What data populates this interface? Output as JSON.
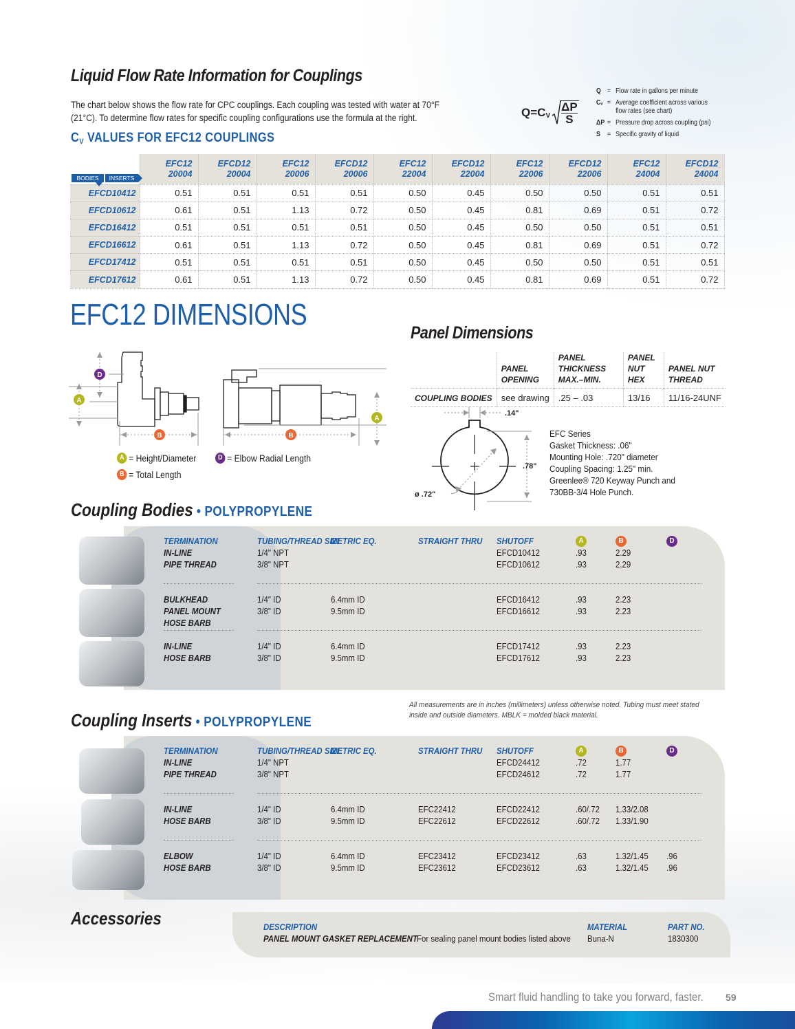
{
  "flow": {
    "title": "Liquid Flow Rate Information for Couplings",
    "intro_line1": "The chart below shows the flow rate for CPC couplings. Each coupling was tested with water at 70°F",
    "intro_line2": "(21°C). To determine flow rates for specific coupling configurations use the formula at the right.",
    "cv_title_c": "C",
    "cv_title_sub": "V",
    "cv_title_rest": " VALUES FOR EFC12 COUPLINGS"
  },
  "formula": {
    "lhs": "Q=C",
    "lhs_sub": "V",
    "numerator": "ΔP",
    "denominator": "S",
    "legend": [
      {
        "symbol": "Q",
        "eq": "=",
        "desc": "Flow rate in gallons per minute"
      },
      {
        "symbol": "Cᵥ",
        "eq": "=",
        "desc": "Average coefficient across various flow rates (see chart)"
      },
      {
        "symbol": "ΔP",
        "eq": "=",
        "desc": "Pressure drop across coupling (psi)"
      },
      {
        "symbol": "S",
        "eq": "=",
        "desc": "Specific gravity of liquid"
      }
    ]
  },
  "cv_table": {
    "tag_bodies": "BODIES",
    "tag_inserts": "INSERTS",
    "columns": [
      {
        "l1": "EFC12",
        "l2": "20004"
      },
      {
        "l1": "EFCD12",
        "l2": "20004"
      },
      {
        "l1": "EFC12",
        "l2": "20006"
      },
      {
        "l1": "EFCD12",
        "l2": "20006"
      },
      {
        "l1": "EFC12",
        "l2": "22004"
      },
      {
        "l1": "EFCD12",
        "l2": "22004"
      },
      {
        "l1": "EFC12",
        "l2": "22006"
      },
      {
        "l1": "EFCD12",
        "l2": "22006"
      },
      {
        "l1": "EFC12",
        "l2": "24004"
      },
      {
        "l1": "EFCD12",
        "l2": "24004"
      }
    ],
    "rows": [
      {
        "body": "EFCD10412",
        "values": [
          "0.51",
          "0.51",
          "0.51",
          "0.51",
          "0.50",
          "0.45",
          "0.50",
          "0.50",
          "0.51",
          "0.51"
        ]
      },
      {
        "body": "EFCD10612",
        "values": [
          "0.61",
          "0.51",
          "1.13",
          "0.72",
          "0.50",
          "0.45",
          "0.81",
          "0.69",
          "0.51",
          "0.72"
        ]
      },
      {
        "body": "EFCD16412",
        "values": [
          "0.51",
          "0.51",
          "0.51",
          "0.51",
          "0.50",
          "0.45",
          "0.50",
          "0.50",
          "0.51",
          "0.51"
        ]
      },
      {
        "body": "EFCD16612",
        "values": [
          "0.61",
          "0.51",
          "1.13",
          "0.72",
          "0.50",
          "0.45",
          "0.81",
          "0.69",
          "0.51",
          "0.72"
        ]
      },
      {
        "body": "EFCD17412",
        "values": [
          "0.51",
          "0.51",
          "0.51",
          "0.51",
          "0.50",
          "0.45",
          "0.50",
          "0.50",
          "0.51",
          "0.51"
        ]
      },
      {
        "body": "EFCD17612",
        "values": [
          "0.61",
          "0.51",
          "1.13",
          "0.72",
          "0.50",
          "0.45",
          "0.81",
          "0.69",
          "0.51",
          "0.72"
        ]
      }
    ]
  },
  "dimensions": {
    "title": "EFC12 DIMENSIONS",
    "badge_a": "A",
    "badge_b": "B",
    "badge_d": "D",
    "legend_a": "= Height/Diameter",
    "legend_b": "= Total Length",
    "legend_d": "= Elbow Radial Length"
  },
  "panel": {
    "title": "Panel Dimensions",
    "headers": [
      {
        "l1": "",
        "l2": ""
      },
      {
        "l1": "PANEL",
        "l2": "OPENING"
      },
      {
        "l1": "PANEL THICKNESS",
        "l2": "MAX.–MIN."
      },
      {
        "l1": "PANEL",
        "l2": "NUT HEX"
      },
      {
        "l1": "PANEL NUT",
        "l2": "THREAD"
      }
    ],
    "row": [
      "COUPLING BODIES",
      "see drawing",
      ".25 – .03",
      "13/16",
      "11/16-24UNF"
    ],
    "drawing": {
      "key_width": ".14\"",
      "height": ".78\"",
      "diameter": "ø .72\""
    },
    "notes": [
      "EFC Series",
      "Gasket Thickness: .06\"",
      "Mounting Hole: .720\" diameter",
      "Coupling Spacing: 1.25\" min.",
      "Greenlee® 720 Keyway Punch and",
      "730BB-3/4 Hole Punch."
    ]
  },
  "bodies": {
    "title": "Coupling Bodies",
    "material": " • POLYPROPYLENE",
    "headers": {
      "termination": "TERMINATION",
      "size": "TUBING/THREAD SIZE",
      "metric": "METRIC EQ.",
      "straight": "STRAIGHT THRU",
      "shutoff": "SHUTOFF"
    },
    "groups": [
      {
        "term": [
          "IN-LINE",
          "PIPE THREAD"
        ],
        "sizes": [
          "1/4\" NPT",
          "3/8\" NPT"
        ],
        "metric": [
          "",
          ""
        ],
        "straight": [
          "",
          ""
        ],
        "shutoff": [
          "EFCD10412",
          "EFCD10612"
        ],
        "a": [
          ".93",
          ".93"
        ],
        "b": [
          "2.29",
          "2.29"
        ],
        "d": [
          "",
          ""
        ]
      },
      {
        "term": [
          "BULKHEAD",
          "PANEL MOUNT",
          "HOSE BARB"
        ],
        "sizes": [
          "1/4\" ID",
          "3/8\" ID"
        ],
        "metric": [
          "6.4mm ID",
          "9.5mm ID"
        ],
        "straight": [
          "",
          ""
        ],
        "shutoff": [
          "EFCD16412",
          "EFCD16612"
        ],
        "a": [
          ".93",
          ".93"
        ],
        "b": [
          "2.23",
          "2.23"
        ],
        "d": [
          "",
          ""
        ]
      },
      {
        "term": [
          "IN-LINE",
          "HOSE BARB"
        ],
        "sizes": [
          "1/4\" ID",
          "3/8\" ID"
        ],
        "metric": [
          "6.4mm ID",
          "9.5mm ID"
        ],
        "straight": [
          "",
          ""
        ],
        "shutoff": [
          "EFCD17412",
          "EFCD17612"
        ],
        "a": [
          ".93",
          ".93"
        ],
        "b": [
          "2.23",
          "2.23"
        ],
        "d": [
          "",
          ""
        ]
      }
    ]
  },
  "note": {
    "line1": "All measurements are in inches (millimeters) unless otherwise noted. Tubing must meet stated",
    "line2": "inside and outside diameters. MBLK = molded black material."
  },
  "inserts": {
    "title": "Coupling Inserts",
    "material": " • POLYPROPYLENE",
    "headers": {
      "termination": "TERMINATION",
      "size": "TUBING/THREAD SIZE",
      "metric": "METRIC EQ.",
      "straight": "STRAIGHT THRU",
      "shutoff": "SHUTOFF"
    },
    "groups": [
      {
        "term": [
          "IN-LINE",
          "PIPE THREAD"
        ],
        "sizes": [
          "1/4\" NPT",
          "3/8\" NPT"
        ],
        "metric": [
          "",
          ""
        ],
        "straight": [
          "",
          ""
        ],
        "shutoff": [
          "EFCD24412",
          "EFCD24612"
        ],
        "a": [
          ".72",
          ".72"
        ],
        "b": [
          "1.77",
          "1.77"
        ],
        "d": [
          "",
          ""
        ]
      },
      {
        "term": [
          "IN-LINE",
          "HOSE BARB"
        ],
        "sizes": [
          "1/4\" ID",
          "3/8\" ID"
        ],
        "metric": [
          "6.4mm ID",
          "9.5mm ID"
        ],
        "straight": [
          "EFC22412",
          "EFC22612"
        ],
        "shutoff": [
          "EFCD22412",
          "EFCD22612"
        ],
        "a": [
          ".60/.72",
          ".60/.72"
        ],
        "b": [
          "1.33/2.08",
          "1.33/1.90"
        ],
        "d": [
          "",
          ""
        ]
      },
      {
        "term": [
          "ELBOW",
          "HOSE BARB"
        ],
        "sizes": [
          "1/4\" ID",
          "3/8\" ID"
        ],
        "metric": [
          "6.4mm ID",
          "9.5mm ID"
        ],
        "straight": [
          "EFC23412",
          "EFC23612"
        ],
        "shutoff": [
          "EFCD23412",
          "EFCD23612"
        ],
        "a": [
          ".63",
          ".63"
        ],
        "b": [
          "1.32/1.45",
          "1.32/1.45"
        ],
        "d": [
          ".96",
          ".96"
        ]
      }
    ]
  },
  "accessories": {
    "title": "Accessories",
    "headers": {
      "description": "DESCRIPTION",
      "material": "MATERIAL",
      "part": "PART NO."
    },
    "item": {
      "name": "PANEL MOUNT GASKET REPLACEMENT",
      "detail": "For sealing panel mount bodies listed above",
      "material": "Buna-N",
      "part": "1830300"
    }
  },
  "footer": {
    "tagline": "Smart fluid handling to take you forward, faster.",
    "page": "59"
  },
  "colors": {
    "brand_blue": "#1d5ea8",
    "panel_beige": "#e3e2dc",
    "panel_gray": "#cfd4d9",
    "badge_a": "#b5b71e",
    "badge_b": "#ea6632",
    "badge_d": "#6a2c8a"
  }
}
